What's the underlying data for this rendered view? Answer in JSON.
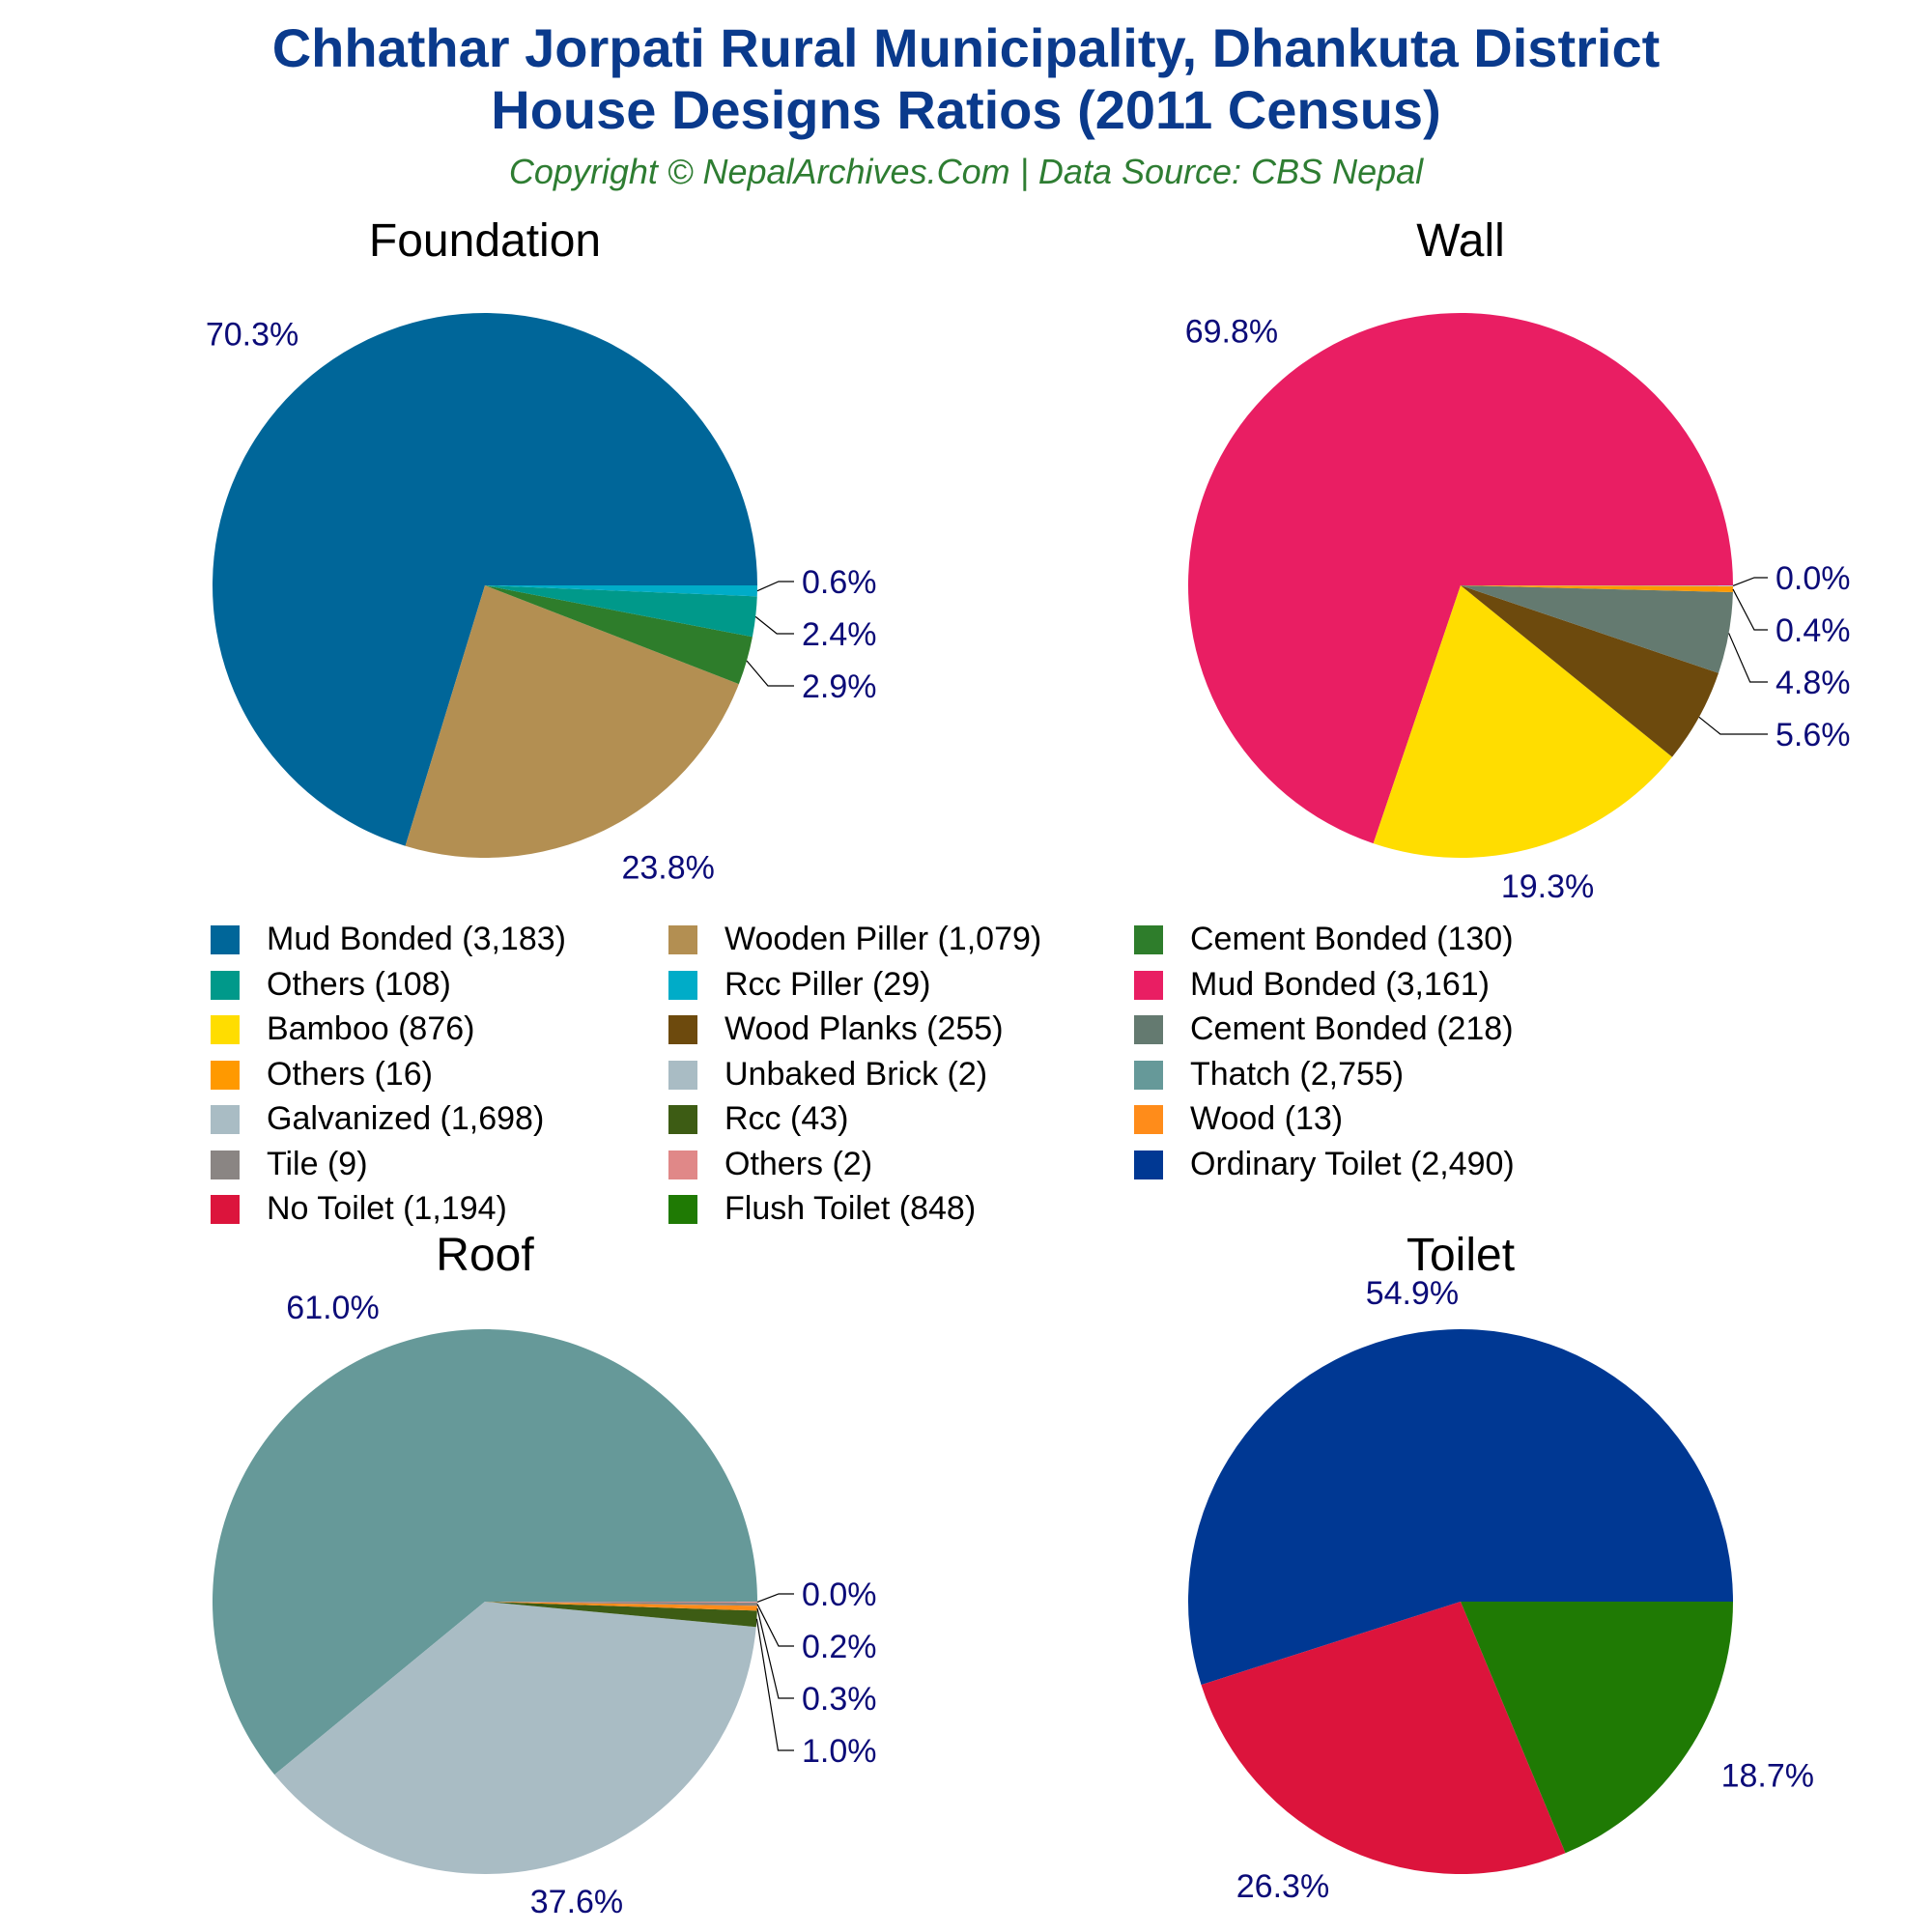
{
  "header": {
    "title_line1": "Chhathar Jorpati Rural Municipality, Dhankuta District",
    "title_line2": "House Designs Ratios (2011 Census)",
    "subtitle": "Copyright © NepalArchives.Com | Data Source: CBS Nepal"
  },
  "chart_data": [
    {
      "type": "pie",
      "title": "Foundation",
      "slices": [
        {
          "name": "Mud Bonded",
          "value": 3183,
          "label": "70.3%",
          "color": "#006699"
        },
        {
          "name": "Wooden Piller",
          "value": 1079,
          "label": "23.8%",
          "color": "#b38f52"
        },
        {
          "name": "Cement Bonded",
          "value": 130,
          "label": "2.9%",
          "color": "#2e7d2b"
        },
        {
          "name": "Others",
          "value": 108,
          "label": "2.4%",
          "color": "#00998a"
        },
        {
          "name": "Rcc Piller",
          "value": 29,
          "label": "0.6%",
          "color": "#00acc8"
        }
      ]
    },
    {
      "type": "pie",
      "title": "Wall",
      "slices": [
        {
          "name": "Mud Bonded",
          "value": 3161,
          "label": "69.8%",
          "color": "#e91e63"
        },
        {
          "name": "Bamboo",
          "value": 876,
          "label": "19.3%",
          "color": "#ffdd00"
        },
        {
          "name": "Wood Planks",
          "value": 255,
          "label": "5.6%",
          "color": "#6d4a0d"
        },
        {
          "name": "Cement Bonded",
          "value": 218,
          "label": "4.8%",
          "color": "#647a70"
        },
        {
          "name": "Others",
          "value": 16,
          "label": "0.4%",
          "color": "#ff9900"
        },
        {
          "name": "Unbaked Brick",
          "value": 2,
          "label": "0.0%",
          "color": "#a9bcc4"
        }
      ]
    },
    {
      "type": "pie",
      "title": "Roof",
      "slices": [
        {
          "name": "Thatch",
          "value": 2755,
          "label": "61.0%",
          "color": "#669999"
        },
        {
          "name": "Galvanized",
          "value": 1698,
          "label": "37.6%",
          "color": "#a9bcc4"
        },
        {
          "name": "Rcc",
          "value": 43,
          "label": "1.0%",
          "color": "#3d5c14"
        },
        {
          "name": "Wood",
          "value": 13,
          "label": "0.3%",
          "color": "#ff8c1a"
        },
        {
          "name": "Tile",
          "value": 9,
          "label": "0.2%",
          "color": "#8a8583"
        },
        {
          "name": "Others",
          "value": 2,
          "label": "0.0%",
          "color": "#e08888"
        }
      ]
    },
    {
      "type": "pie",
      "title": "Toilet",
      "slices": [
        {
          "name": "Ordinary Toilet",
          "value": 2490,
          "label": "54.9%",
          "color": "#003893"
        },
        {
          "name": "No Toilet",
          "value": 1194,
          "label": "26.3%",
          "color": "#dc143c"
        },
        {
          "name": "Flush Toilet",
          "value": 848,
          "label": "18.7%",
          "color": "#1f7a04"
        }
      ]
    }
  ],
  "legend": [
    {
      "label": "Mud Bonded (3,183)",
      "color": "#006699"
    },
    {
      "label": "Wooden Piller (1,079)",
      "color": "#b38f52"
    },
    {
      "label": "Cement Bonded (130)",
      "color": "#2e7d2b"
    },
    {
      "label": "Others (108)",
      "color": "#00998a"
    },
    {
      "label": "Rcc Piller (29)",
      "color": "#00acc8"
    },
    {
      "label": "Mud Bonded (3,161)",
      "color": "#e91e63"
    },
    {
      "label": "Bamboo (876)",
      "color": "#ffdd00"
    },
    {
      "label": "Wood Planks (255)",
      "color": "#6d4a0d"
    },
    {
      "label": "Cement Bonded (218)",
      "color": "#647a70"
    },
    {
      "label": "Others (16)",
      "color": "#ff9900"
    },
    {
      "label": "Unbaked Brick (2)",
      "color": "#a9bcc4"
    },
    {
      "label": "Thatch (2,755)",
      "color": "#669999"
    },
    {
      "label": "Galvanized (1,698)",
      "color": "#a9bcc4"
    },
    {
      "label": "Rcc (43)",
      "color": "#3d5c14"
    },
    {
      "label": "Wood (13)",
      "color": "#ff8c1a"
    },
    {
      "label": "Tile (9)",
      "color": "#8a8583"
    },
    {
      "label": "Others (2)",
      "color": "#e08888"
    },
    {
      "label": "Ordinary Toilet (2,490)",
      "color": "#003893"
    },
    {
      "label": "No Toilet (1,194)",
      "color": "#dc143c"
    },
    {
      "label": "Flush Toilet (848)",
      "color": "#1f7a04"
    }
  ]
}
